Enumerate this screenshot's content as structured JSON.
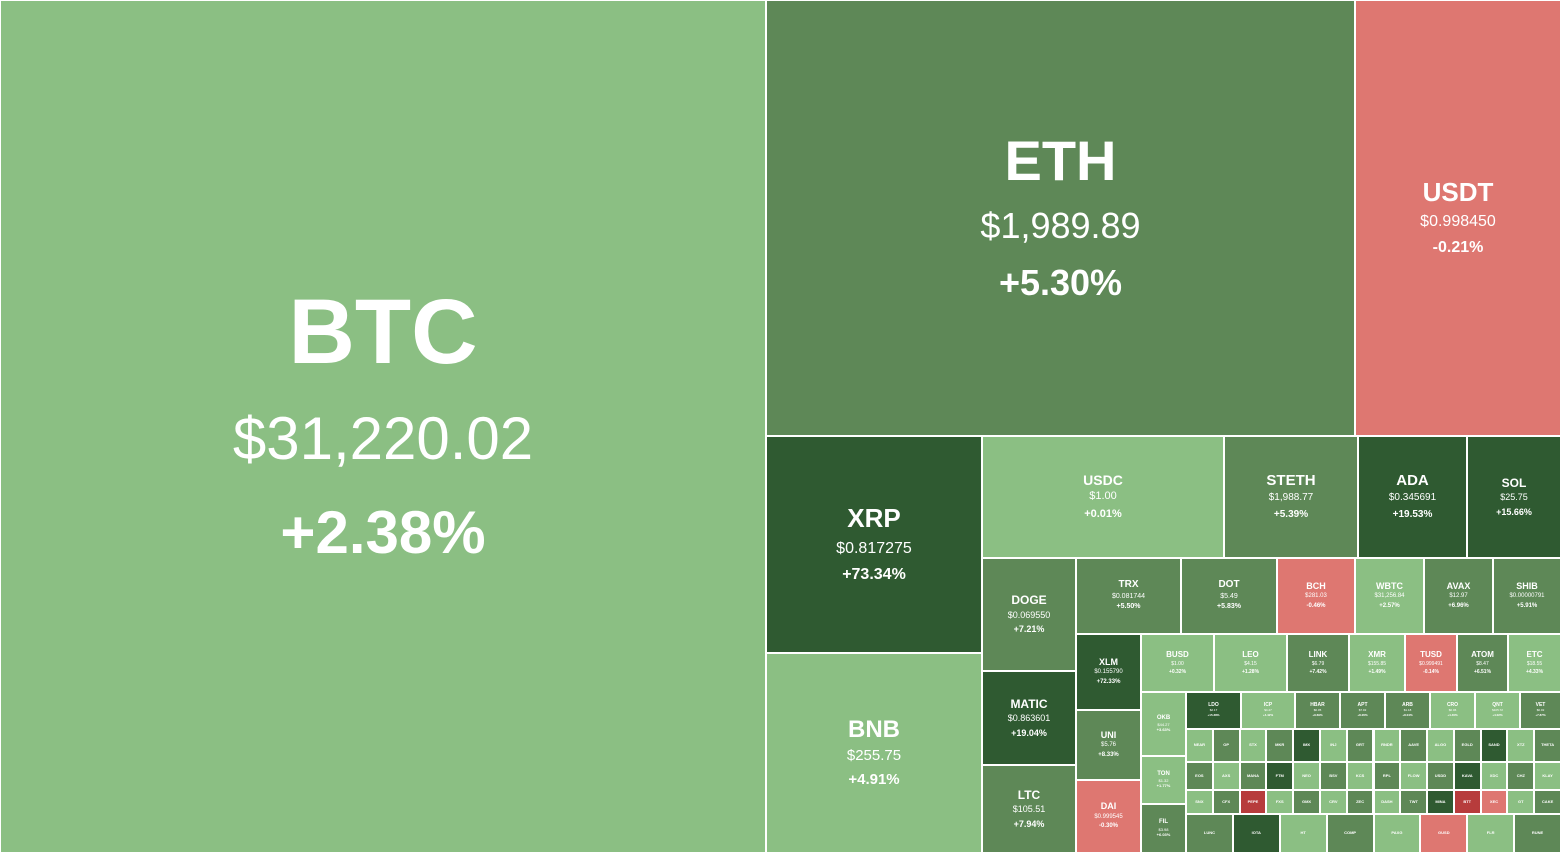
{
  "colors": {
    "up_light": "#8bbf83",
    "up_mid": "#5e8857",
    "up_dark": "#2f5a31",
    "down_light": "#de7771",
    "down_dark": "#b73c3c",
    "border": "#ffffff"
  },
  "chart_data": {
    "type": "treemap",
    "title": "",
    "tiles": [
      {
        "symbol": "BTC",
        "price": "$31,220.02",
        "change": "+2.38%"
      },
      {
        "symbol": "ETH",
        "price": "$1,989.89",
        "change": "+5.30%"
      },
      {
        "symbol": "USDT",
        "price": "$0.998450",
        "change": "-0.21%"
      },
      {
        "symbol": "XRP",
        "price": "$0.817275",
        "change": "+73.34%"
      },
      {
        "symbol": "BNB",
        "price": "$255.75",
        "change": "+4.91%"
      },
      {
        "symbol": "USDC",
        "price": "$1.00",
        "change": "+0.01%"
      },
      {
        "symbol": "STETH",
        "price": "$1,988.77",
        "change": "+5.39%"
      },
      {
        "symbol": "ADA",
        "price": "$0.345691",
        "change": "+19.53%"
      },
      {
        "symbol": "SOL",
        "price": "$25.75",
        "change": "+15.66%"
      },
      {
        "symbol": "DOGE",
        "price": "$0.069550",
        "change": "+7.21%"
      },
      {
        "symbol": "MATIC",
        "price": "$0.863601",
        "change": "+19.04%"
      },
      {
        "symbol": "LTC",
        "price": "$105.51",
        "change": "+7.94%"
      },
      {
        "symbol": "TRX",
        "price": "$0.081744",
        "change": "+5.50%"
      },
      {
        "symbol": "DOT",
        "price": "$5.49",
        "change": "+5.83%"
      },
      {
        "symbol": "BCH",
        "price": "$281.03",
        "change": "-0.46%"
      },
      {
        "symbol": "WBTC",
        "price": "$31,256.84",
        "change": "+2.57%"
      },
      {
        "symbol": "AVAX",
        "price": "$12.97",
        "change": "+6.96%"
      },
      {
        "symbol": "SHIB",
        "price": "$0.00000791",
        "change": "+5.91%"
      },
      {
        "symbol": "XLM",
        "price": "$0.155790",
        "change": "+72.33%"
      },
      {
        "symbol": "BUSD",
        "price": "$1.00",
        "change": "+0.32%"
      },
      {
        "symbol": "LEO",
        "price": "$4.15",
        "change": "+1.28%"
      },
      {
        "symbol": "LINK",
        "price": "$6.79",
        "change": "+7.42%"
      },
      {
        "symbol": "XMR",
        "price": "$155.85",
        "change": "+1.49%"
      },
      {
        "symbol": "TUSD",
        "price": "$0.999491",
        "change": "-0.14%"
      },
      {
        "symbol": "ATOM",
        "price": "$8.47",
        "change": "+6.51%"
      },
      {
        "symbol": "ETC",
        "price": "$18.55",
        "change": "+4.33%"
      },
      {
        "symbol": "UNI",
        "price": "$5.76",
        "change": "+8.33%"
      },
      {
        "symbol": "DAI",
        "price": "$0.999545",
        "change": "-0.30%"
      },
      {
        "symbol": "OKB",
        "price": "$44.27",
        "change": "+3.63%"
      },
      {
        "symbol": "TON",
        "price": "$1.32",
        "change": "+1.77%"
      },
      {
        "symbol": "FIL",
        "price": "$3.98",
        "change": "+6.03%"
      },
      {
        "symbol": "LDO",
        "price": "$2.17",
        "change": "+15.38%"
      },
      {
        "symbol": "ICP",
        "price": "$4.47",
        "change": "+4.42%"
      },
      {
        "symbol": "HBAR",
        "price": "$0.05",
        "change": "+9.69%"
      },
      {
        "symbol": "APT",
        "price": "$7.02",
        "change": "+8.26%"
      },
      {
        "symbol": "ARB",
        "price": "$1.18",
        "change": "+8.04%"
      },
      {
        "symbol": "CRO",
        "price": "$0.06",
        "change": "+4.46%"
      },
      {
        "symbol": "QNT",
        "price": "$105.72",
        "change": "+4.02%"
      },
      {
        "symbol": "VET",
        "price": "$0.02",
        "change": "+7.87%"
      }
    ]
  },
  "micro_tiles": [
    "NEAR",
    "OP",
    "STX",
    "MKR",
    "IMX",
    "INJ",
    "GRT",
    "RNDR",
    "AAVE",
    "ALGO",
    "EGLD",
    "SAND",
    "XTZ",
    "THETA",
    "EOS",
    "AXS",
    "MANA",
    "FTM",
    "NEO",
    "BSV",
    "KCS",
    "RPL",
    "FLOW",
    "USDD",
    "KAVA",
    "XDC",
    "CHZ",
    "KLAY",
    "SNX",
    "CFX",
    "PEPE",
    "FXS",
    "GMX",
    "CRV",
    "ZEC",
    "DASH",
    "TWT",
    "MINA",
    "BTT",
    "XEC",
    "GT",
    "CAKE",
    "LUNC",
    "IOTA",
    "HT",
    "COMP",
    "PAXG",
    "GUSD",
    "FLR",
    "RUNE"
  ]
}
